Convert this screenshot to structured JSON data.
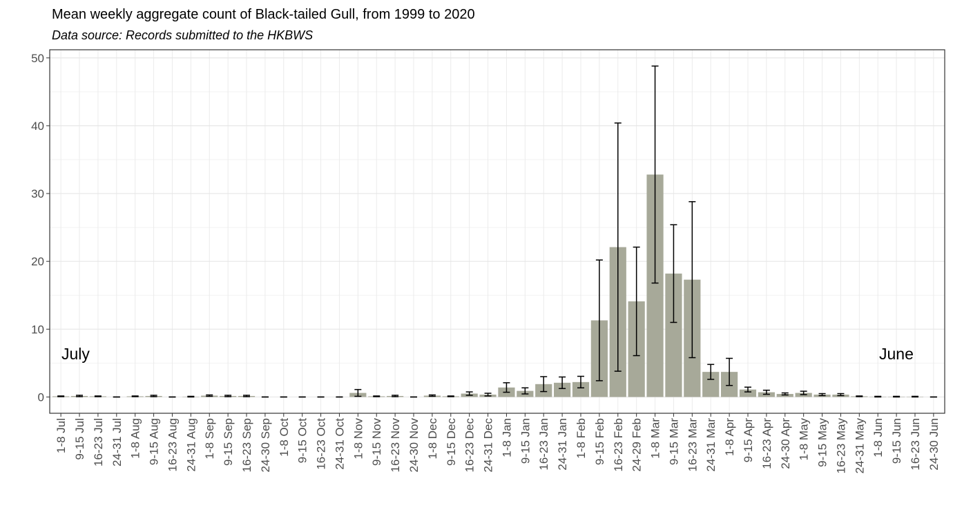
{
  "chart_data": {
    "type": "bar",
    "title": "Mean weekly aggregate count of Black-tailed Gull, from 1999 to 2020",
    "subtitle": "Data source: Records submitted to the HKBWS",
    "annotations": [
      "July",
      "June"
    ],
    "categories": [
      "1-8 Jul",
      "9-15 Jul",
      "16-23 Jul",
      "24-31 Jul",
      "1-8 Aug",
      "9-15 Aug",
      "16-23 Aug",
      "24-31 Aug",
      "1-8 Sep",
      "9-15 Sep",
      "16-23 Sep",
      "24-30 Sep",
      "1-8 Oct",
      "9-15 Oct",
      "16-23 Oct",
      "24-31 Oct",
      "1-8 Nov",
      "9-15 Nov",
      "16-23 Nov",
      "24-30 Nov",
      "1-8 Dec",
      "9-15 Dec",
      "16-23 Dec",
      "24-31 Dec",
      "1-8 Jan",
      "9-15 Jan",
      "16-23 Jan",
      "24-31 Jan",
      "1-8 Feb",
      "9-15 Feb",
      "16-23 Feb",
      "24-29 Feb",
      "1-8 Mar",
      "9-15 Mar",
      "16-23 Mar",
      "24-31 Mar",
      "1-8 Apr",
      "9-15 Apr",
      "16-23 Apr",
      "24-30 Apr",
      "1-8 May",
      "9-15 May",
      "16-23 May",
      "24-31 May",
      "1-8 Jun",
      "9-15 Jun",
      "16-23 Jun",
      "24-30 Jun"
    ],
    "values": [
      0.1,
      0.15,
      0.1,
      0,
      0.1,
      0.15,
      0,
      0.05,
      0.2,
      0.15,
      0.15,
      0,
      0,
      0,
      0,
      0,
      0.6,
      0.1,
      0.15,
      0,
      0.2,
      0.1,
      0.5,
      0.35,
      1.4,
      0.9,
      1.9,
      2.1,
      2.2,
      11.3,
      22.1,
      14.1,
      32.8,
      18.2,
      17.3,
      3.7,
      3.7,
      1.1,
      0.7,
      0.45,
      0.6,
      0.35,
      0.35,
      0.1,
      0.05,
      0.05,
      0.05,
      0
    ],
    "errors": [
      0.05,
      0.1,
      0.05,
      0,
      0.05,
      0.1,
      0,
      0.05,
      0.1,
      0.1,
      0.1,
      0,
      0,
      0,
      0,
      0,
      0.5,
      0.05,
      0.1,
      0,
      0.1,
      0.05,
      0.25,
      0.2,
      0.7,
      0.45,
      1.1,
      0.85,
      0.85,
      8.9,
      18.3,
      8,
      16,
      7.2,
      11.5,
      1.1,
      2,
      0.35,
      0.3,
      0.15,
      0.25,
      0.15,
      0.15,
      0.05,
      0.05,
      0.05,
      0.05,
      0
    ],
    "color": "#a7a999",
    "ylim": [
      -2.4,
      51.2
    ],
    "yticks": [
      0,
      10,
      20,
      30,
      40,
      50
    ],
    "grid": true
  }
}
